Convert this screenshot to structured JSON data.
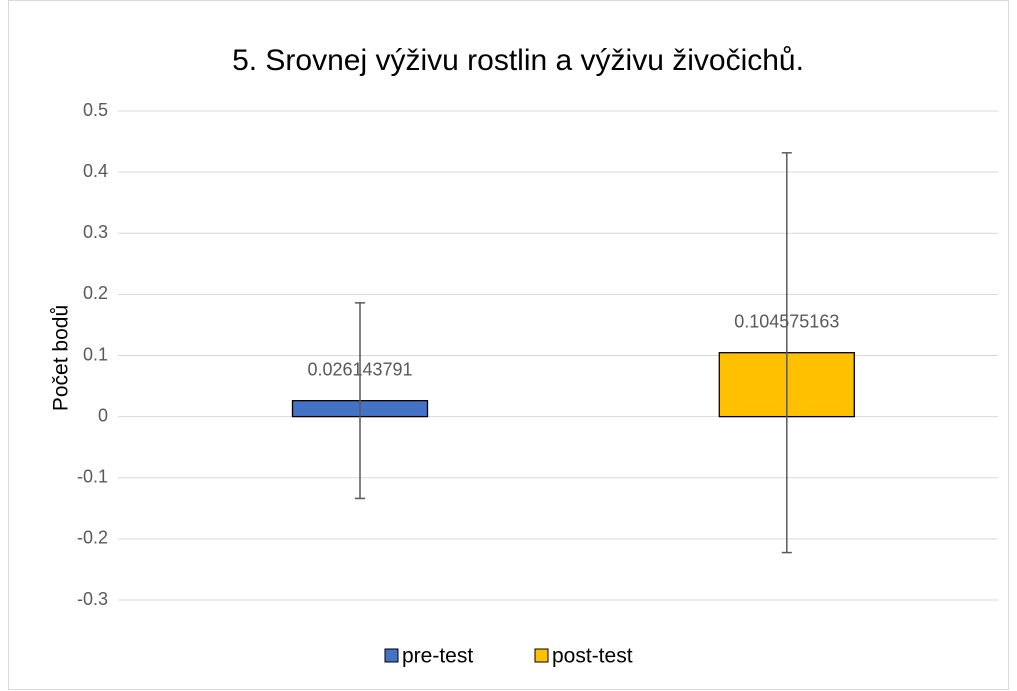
{
  "chart_data": {
    "type": "bar",
    "title": "5. Srovnej výživu rostlin a výživu živočichů.",
    "ylabel": "Počet bodů",
    "categories": [
      null
    ],
    "series": [
      {
        "name": "pre-test",
        "color": "#4472c4",
        "values": [
          0.026143791
        ],
        "errors": [
          0.16
        ]
      },
      {
        "name": "post-test",
        "color": "#ffc000",
        "values": [
          0.104575163
        ],
        "errors": [
          0.327
        ]
      }
    ],
    "ylim": [
      -0.3,
      0.5
    ],
    "yticks": [
      -0.3,
      -0.2,
      -0.1,
      0,
      0.1,
      0.2,
      0.3,
      0.4,
      0.5
    ],
    "grid": true,
    "legend": "bottom"
  }
}
